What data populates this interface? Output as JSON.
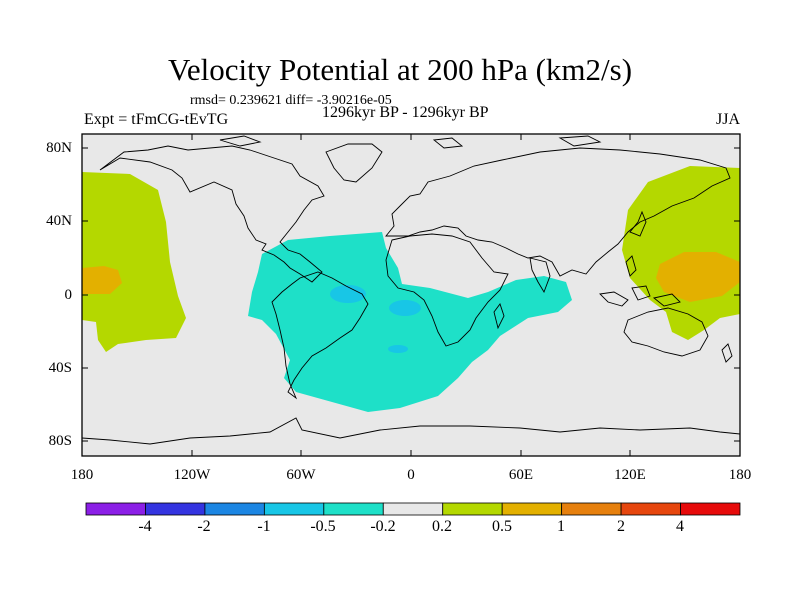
{
  "title": "Velocity Potential at 200 hPa (km2/s)",
  "stats": "rmsd= 0.239621 diff= -3.90216e-05",
  "expt": "Expt = tFmCG-tEvTG",
  "period": "1296kyr BP - 1296kyr BP",
  "season": "JJA",
  "lat_labels": [
    "80N",
    "40N",
    "0",
    "40S",
    "80S"
  ],
  "lon_labels": [
    "180",
    "120W",
    "60W",
    "0",
    "60E",
    "120E",
    "180"
  ],
  "colorbar": {
    "labels": [
      "-4",
      "-2",
      "-1",
      "-0.5",
      "-0.2",
      "0.2",
      "0.5",
      "1",
      "2",
      "4"
    ],
    "colors": [
      "#8b1fe6",
      "#3434e0",
      "#1c86e3",
      "#18c6e6",
      "#1ee0c8",
      "#e8e8e8",
      "#b4d800",
      "#e3b000",
      "#e6800e",
      "#e6460e",
      "#e60a0a"
    ]
  },
  "map_colors": {
    "background": "#e8e8e8",
    "negative_weak": "#1ee0c8",
    "negative_mid": "#18c6e6",
    "positive_weak": "#b4d800",
    "positive_mid": "#e3b000"
  }
}
